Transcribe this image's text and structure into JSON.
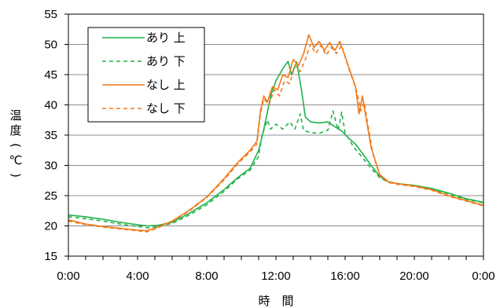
{
  "chart_data": {
    "type": "line",
    "xlabel": "時　間",
    "ylabel_chars": [
      "温",
      "度",
      "(",
      "℃",
      ")"
    ],
    "ylim": [
      15,
      55
    ],
    "yticks": [
      15,
      20,
      25,
      30,
      35,
      40,
      45,
      50,
      55
    ],
    "xlim": [
      0,
      24
    ],
    "xticks": [
      {
        "value": 0,
        "label": "0:00"
      },
      {
        "value": 4,
        "label": "4:00"
      },
      {
        "value": 8,
        "label": "8:00"
      },
      {
        "value": 12,
        "label": "12:00"
      },
      {
        "value": 16,
        "label": "16:00"
      },
      {
        "value": 20,
        "label": "20:00"
      },
      {
        "value": 24,
        "label": "0:00"
      }
    ],
    "x_minor_tick_step": 1,
    "grid": "horizontal",
    "legend_position": "top-left",
    "series": [
      {
        "name": "あり 上",
        "color": "#21b24b",
        "dash": "solid",
        "points": [
          [
            0,
            21.8
          ],
          [
            1,
            21.5
          ],
          [
            2,
            21.1
          ],
          [
            3,
            20.6
          ],
          [
            4,
            20.2
          ],
          [
            4.6,
            20.0
          ],
          [
            5.2,
            20.1
          ],
          [
            6,
            20.6
          ],
          [
            7,
            22.1
          ],
          [
            8,
            23.8
          ],
          [
            9,
            26.0
          ],
          [
            9.8,
            28.0
          ],
          [
            10.5,
            29.5
          ],
          [
            11,
            32.5
          ],
          [
            11.3,
            36.0
          ],
          [
            11.7,
            41.5
          ],
          [
            12,
            44.0
          ],
          [
            12.4,
            46.0
          ],
          [
            12.7,
            47.2
          ],
          [
            12.9,
            45.0
          ],
          [
            13.2,
            47.1
          ],
          [
            13.5,
            42.0
          ],
          [
            13.7,
            38.0
          ],
          [
            14,
            37.2
          ],
          [
            14.5,
            37.0
          ],
          [
            15,
            37.2
          ],
          [
            15.4,
            36.4
          ],
          [
            15.8,
            35.7
          ],
          [
            16.2,
            34.5
          ],
          [
            16.6,
            33.5
          ],
          [
            17,
            32.0
          ],
          [
            17.5,
            30.0
          ],
          [
            18,
            28.2
          ],
          [
            18.5,
            27.3
          ],
          [
            19,
            27.0
          ],
          [
            20,
            26.7
          ],
          [
            21,
            26.2
          ],
          [
            22,
            25.4
          ],
          [
            23,
            24.5
          ],
          [
            24,
            23.9
          ]
        ]
      },
      {
        "name": "あり 下",
        "color": "#21b24b",
        "dash": "5,4",
        "points": [
          [
            0,
            21.5
          ],
          [
            1,
            21.2
          ],
          [
            2,
            20.8
          ],
          [
            3,
            20.3
          ],
          [
            4,
            19.9
          ],
          [
            4.6,
            19.7
          ],
          [
            5.2,
            19.9
          ],
          [
            6,
            20.4
          ],
          [
            7,
            21.8
          ],
          [
            8,
            23.5
          ],
          [
            9,
            25.7
          ],
          [
            9.8,
            27.8
          ],
          [
            10.5,
            29.2
          ],
          [
            11,
            31.5
          ],
          [
            11.2,
            35.0
          ],
          [
            11.5,
            37.5
          ],
          [
            11.7,
            36.0
          ],
          [
            12,
            36.8
          ],
          [
            12.4,
            36.0
          ],
          [
            12.8,
            37.2
          ],
          [
            13.1,
            36.0
          ],
          [
            13.4,
            38.5
          ],
          [
            13.6,
            35.8
          ],
          [
            14,
            35.4
          ],
          [
            14.5,
            35.3
          ],
          [
            15,
            35.8
          ],
          [
            15.3,
            39.0
          ],
          [
            15.6,
            35.8
          ],
          [
            15.8,
            38.8
          ],
          [
            16,
            35.4
          ],
          [
            16.5,
            33.0
          ],
          [
            17,
            31.3
          ],
          [
            17.5,
            29.5
          ],
          [
            18,
            28.0
          ],
          [
            18.5,
            27.2
          ],
          [
            19,
            26.9
          ],
          [
            20,
            26.6
          ],
          [
            21,
            26.1
          ],
          [
            22,
            25.3
          ],
          [
            23,
            24.4
          ],
          [
            24,
            23.8
          ]
        ]
      },
      {
        "name": "なし 上",
        "color": "#f07a1a",
        "dash": "solid",
        "points": [
          [
            0,
            21.0
          ],
          [
            1,
            20.3
          ],
          [
            2,
            19.9
          ],
          [
            3,
            19.6
          ],
          [
            4,
            19.3
          ],
          [
            4.5,
            19.2
          ],
          [
            5,
            19.6
          ],
          [
            6,
            20.8
          ],
          [
            7,
            22.6
          ],
          [
            8,
            24.8
          ],
          [
            9,
            27.8
          ],
          [
            9.8,
            30.5
          ],
          [
            10.5,
            32.5
          ],
          [
            10.9,
            34.0
          ],
          [
            11.1,
            39.0
          ],
          [
            11.3,
            41.5
          ],
          [
            11.5,
            40.5
          ],
          [
            11.8,
            43.0
          ],
          [
            12.1,
            42.5
          ],
          [
            12.4,
            45.0
          ],
          [
            12.7,
            44.5
          ],
          [
            13,
            47.5
          ],
          [
            13.3,
            46.5
          ],
          [
            13.6,
            48.5
          ],
          [
            13.9,
            51.6
          ],
          [
            14.2,
            49.5
          ],
          [
            14.5,
            50.5
          ],
          [
            14.8,
            49.0
          ],
          [
            15.1,
            50.3
          ],
          [
            15.4,
            49.0
          ],
          [
            15.7,
            50.5
          ],
          [
            16,
            48.0
          ],
          [
            16.3,
            45.5
          ],
          [
            16.6,
            43.0
          ],
          [
            16.8,
            38.5
          ],
          [
            17,
            41.5
          ],
          [
            17.2,
            38.0
          ],
          [
            17.5,
            33.0
          ],
          [
            18,
            28.5
          ],
          [
            18.5,
            27.3
          ],
          [
            19,
            27.0
          ],
          [
            20,
            26.6
          ],
          [
            21,
            26.0
          ],
          [
            22,
            25.0
          ],
          [
            23,
            24.2
          ],
          [
            24,
            23.4
          ]
        ]
      },
      {
        "name": "なし 下",
        "color": "#f07a1a",
        "dash": "5,4",
        "points": [
          [
            0,
            20.8
          ],
          [
            1,
            20.2
          ],
          [
            2,
            19.8
          ],
          [
            3,
            19.5
          ],
          [
            4,
            19.2
          ],
          [
            4.5,
            19.0
          ],
          [
            5,
            19.5
          ],
          [
            6,
            20.7
          ],
          [
            7,
            22.5
          ],
          [
            8,
            24.7
          ],
          [
            9,
            27.6
          ],
          [
            9.8,
            30.3
          ],
          [
            10.5,
            32.2
          ],
          [
            10.9,
            33.5
          ],
          [
            11.1,
            38.5
          ],
          [
            11.3,
            41.0
          ],
          [
            11.6,
            40.0
          ],
          [
            11.9,
            42.5
          ],
          [
            12.2,
            41.5
          ],
          [
            12.5,
            44.0
          ],
          [
            12.8,
            43.5
          ],
          [
            13.1,
            46.5
          ],
          [
            13.4,
            45.5
          ],
          [
            13.7,
            47.5
          ],
          [
            14,
            50.0
          ],
          [
            14.3,
            48.5
          ],
          [
            14.6,
            49.8
          ],
          [
            14.9,
            48.2
          ],
          [
            15.2,
            49.5
          ],
          [
            15.5,
            48.5
          ],
          [
            15.8,
            49.8
          ],
          [
            16.1,
            47.0
          ],
          [
            16.4,
            44.5
          ],
          [
            16.7,
            42.0
          ],
          [
            16.9,
            39.0
          ],
          [
            17.1,
            40.5
          ],
          [
            17.3,
            37.0
          ],
          [
            17.6,
            32.0
          ],
          [
            18,
            28.3
          ],
          [
            18.5,
            27.2
          ],
          [
            19,
            26.9
          ],
          [
            20,
            26.5
          ],
          [
            21,
            25.9
          ],
          [
            22,
            24.9
          ],
          [
            23,
            24.1
          ],
          [
            24,
            23.3
          ]
        ]
      }
    ]
  }
}
